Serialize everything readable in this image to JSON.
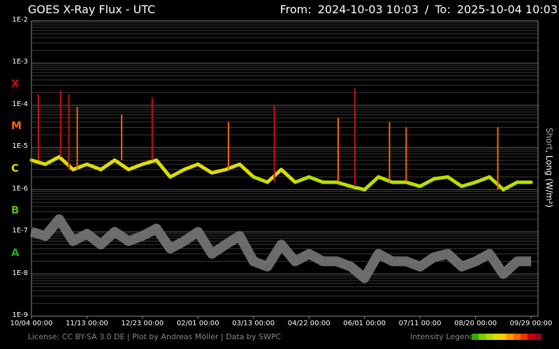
{
  "header": {
    "title": "GOES X-Ray Flux - UTC",
    "from_label": "From:",
    "from_value": "2024-10-03 10:03",
    "separator": "/",
    "to_label": "To:",
    "to_value": "2025-10-04 10:03"
  },
  "footer": {
    "license": "License: CC BY-SA 3.0 DE | Plot by Andreas Möller | Data by SWPC",
    "legend_label": "Intensity Legend",
    "legend_colors": [
      "#33aa00",
      "#77cc00",
      "#aadd00",
      "#dddd00",
      "#ffcc00",
      "#ff9900",
      "#ff6600",
      "#ee3300",
      "#cc0000",
      "#990033"
    ]
  },
  "side_label": {
    "short": "Short",
    "sep": ",",
    "long": "Long (W/m²)"
  },
  "colors": {
    "short_channel": "#777777",
    "grid": "#555555",
    "class_X": "#cc1111",
    "class_M": "#ff6600",
    "class_C": "#dddd00",
    "class_B": "#55bb00",
    "class_A": "#22aa22"
  },
  "chart_data": {
    "type": "line",
    "title": "GOES X-Ray Flux - UTC",
    "yscale": "log",
    "ylim": [
      1e-09,
      0.01
    ],
    "y_ticks": [
      {
        "label": "1E-2",
        "value": 0.01
      },
      {
        "label": "1E-3",
        "value": 0.001
      },
      {
        "label": "1E-4",
        "value": 0.0001
      },
      {
        "label": "1E-5",
        "value": 1e-05
      },
      {
        "label": "1E-6",
        "value": 1e-06
      },
      {
        "label": "1E-7",
        "value": 1e-07
      },
      {
        "label": "1E-8",
        "value": 1e-08
      },
      {
        "label": "1E-9",
        "value": 1e-09
      }
    ],
    "flare_classes": [
      {
        "label": "X",
        "value": 0.0003
      },
      {
        "label": "M",
        "value": 3e-05
      },
      {
        "label": "C",
        "value": 3e-06
      },
      {
        "label": "B",
        "value": 3e-07
      },
      {
        "label": "A",
        "value": 3e-08
      }
    ],
    "x_range": [
      "2024-10-04",
      "2025-10-04"
    ],
    "x_ticks": [
      "10/04 00:00",
      "11/13 00:00",
      "12/23 00:00",
      "02/01 00:00",
      "03/13 00:00",
      "04/22 00:00",
      "06/01 00:00",
      "07/11 00:00",
      "08/20 00:00",
      "09/29 00:00"
    ],
    "grid": true,
    "series": [
      {
        "name": "Long (W/m²)",
        "x": [
          "2024-10-04",
          "2024-10-14",
          "2024-10-24",
          "2024-11-03",
          "2024-11-13",
          "2024-11-23",
          "2024-12-03",
          "2024-12-13",
          "2024-12-23",
          "2025-01-02",
          "2025-01-12",
          "2025-01-22",
          "2025-02-01",
          "2025-02-11",
          "2025-02-21",
          "2025-03-03",
          "2025-03-13",
          "2025-03-23",
          "2025-04-02",
          "2025-04-12",
          "2025-04-22",
          "2025-05-02",
          "2025-05-12",
          "2025-05-22",
          "2025-06-01",
          "2025-06-11",
          "2025-06-21",
          "2025-07-01",
          "2025-07-11",
          "2025-07-21",
          "2025-07-31",
          "2025-08-10",
          "2025-08-20",
          "2025-08-30",
          "2025-09-09",
          "2025-09-19",
          "2025-09-29"
        ],
        "values": [
          5e-06,
          4e-06,
          6e-06,
          3e-06,
          4e-06,
          3e-06,
          5e-06,
          3e-06,
          4e-06,
          5e-06,
          2e-06,
          3e-06,
          4e-06,
          2.5e-06,
          3e-06,
          4e-06,
          2e-06,
          1.5e-06,
          3e-06,
          1.5e-06,
          2e-06,
          1.5e-06,
          1.5e-06,
          1.2e-06,
          1e-06,
          2e-06,
          1.5e-06,
          1.5e-06,
          1.2e-06,
          1.8e-06,
          2e-06,
          1.2e-06,
          1.5e-06,
          2e-06,
          1e-06,
          1.5e-06,
          1.5e-06
        ]
      },
      {
        "name": "Short",
        "x": [
          "2024-10-04",
          "2024-10-14",
          "2024-10-24",
          "2024-11-03",
          "2024-11-13",
          "2024-11-23",
          "2024-12-03",
          "2024-12-13",
          "2024-12-23",
          "2025-01-02",
          "2025-01-12",
          "2025-01-22",
          "2025-02-01",
          "2025-02-11",
          "2025-02-21",
          "2025-03-03",
          "2025-03-13",
          "2025-03-23",
          "2025-04-02",
          "2025-04-12",
          "2025-04-22",
          "2025-05-02",
          "2025-05-12",
          "2025-05-22",
          "2025-06-01",
          "2025-06-11",
          "2025-06-21",
          "2025-07-01",
          "2025-07-11",
          "2025-07-21",
          "2025-07-31",
          "2025-08-10",
          "2025-08-20",
          "2025-08-30",
          "2025-09-09",
          "2025-09-19",
          "2025-09-29"
        ],
        "values": [
          1e-07,
          8e-08,
          2e-07,
          6e-08,
          9e-08,
          5e-08,
          1e-07,
          6e-08,
          8e-08,
          1.2e-07,
          4e-08,
          6e-08,
          1e-07,
          3e-08,
          5e-08,
          8e-08,
          2e-08,
          1.5e-08,
          5e-08,
          2e-08,
          3e-08,
          2e-08,
          2e-08,
          1.5e-08,
          8e-09,
          3e-08,
          2e-08,
          2e-08,
          1.5e-08,
          2.5e-08,
          3e-08,
          1.5e-08,
          2e-08,
          3e-08,
          1e-08,
          2e-08,
          2e-08
        ]
      }
    ],
    "peaks": [
      {
        "x": "2024-10-09",
        "value": 0.00018
      },
      {
        "x": "2024-10-25",
        "value": 0.00022
      },
      {
        "x": "2024-10-31",
        "value": 0.00018
      },
      {
        "x": "2024-11-06",
        "value": 9e-05
      },
      {
        "x": "2024-12-08",
        "value": 6e-05
      },
      {
        "x": "2024-12-30",
        "value": 0.00015
      },
      {
        "x": "2025-02-23",
        "value": 4e-05
      },
      {
        "x": "2025-03-28",
        "value": 0.0001
      },
      {
        "x": "2025-05-13",
        "value": 5e-05
      },
      {
        "x": "2025-05-25",
        "value": 0.00025
      },
      {
        "x": "2025-06-19",
        "value": 4e-05
      },
      {
        "x": "2025-07-01",
        "value": 3e-05
      },
      {
        "x": "2025-09-05",
        "value": 3e-05
      }
    ]
  }
}
